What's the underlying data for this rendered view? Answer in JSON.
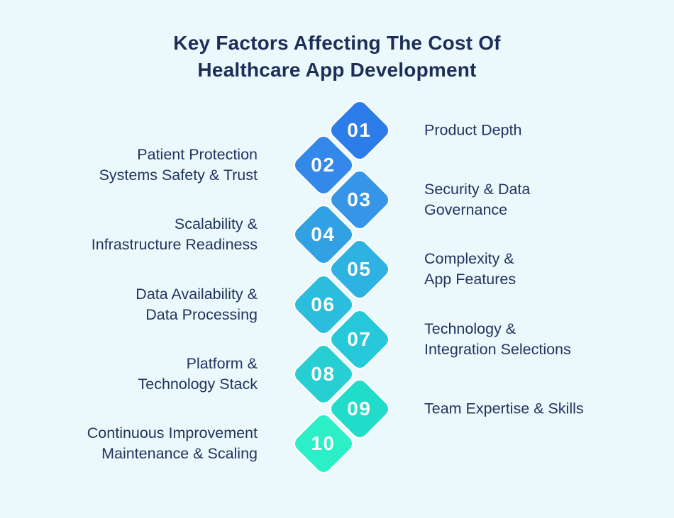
{
  "title": {
    "line1": "Key Factors Affecting The Cost Of",
    "line2": "Healthcare App Development"
  },
  "colors": {
    "background": "#ecf9fc",
    "title_text": "#1c2e57",
    "label_text": "#22335e",
    "number_text": "#ffffff"
  },
  "factors": [
    {
      "number": "01",
      "side": "right",
      "color": "#2c7de9",
      "label": "Product Depth",
      "lines": [
        "Product Depth"
      ]
    },
    {
      "number": "02",
      "side": "left",
      "color": "#3388ea",
      "label": "Patient Protection Systems Safety & Trust",
      "lines": [
        "Patient Protection",
        "Systems Safety & Trust"
      ]
    },
    {
      "number": "03",
      "side": "right",
      "color": "#3795e8",
      "label": "Security & Data Governance",
      "lines": [
        "Security & Data",
        "Governance"
      ]
    },
    {
      "number": "04",
      "side": "left",
      "color": "#31a1e3",
      "label": "Scalability & Infrastructure Readiness",
      "lines": [
        "Scalability &",
        "Infrastructure Readiness"
      ]
    },
    {
      "number": "05",
      "side": "right",
      "color": "#2db2e2",
      "label": "Complexity & App Features",
      "lines": [
        "Complexity &",
        "App Features"
      ]
    },
    {
      "number": "06",
      "side": "left",
      "color": "#2abdde",
      "label": "Data Availability & Data Processing",
      "lines": [
        "Data Availability &",
        "Data Processing"
      ]
    },
    {
      "number": "07",
      "side": "right",
      "color": "#26c9da",
      "label": "Technology & Integration Selections",
      "lines": [
        "Technology &",
        "Integration Selections"
      ]
    },
    {
      "number": "08",
      "side": "left",
      "color": "#28cfd2",
      "label": "Platform & Technology Stack",
      "lines": [
        "Platform &",
        "Technology Stack"
      ]
    },
    {
      "number": "09",
      "side": "right",
      "color": "#22dcca",
      "label": "Team Expertise & Skills",
      "lines": [
        "Team Expertise & Skills"
      ]
    },
    {
      "number": "10",
      "side": "left",
      "color": "#2aefc7",
      "label": "Continuous Improvement Maintenance & Scaling",
      "lines": [
        "Continuous Improvement",
        "Maintenance & Scaling"
      ]
    }
  ]
}
